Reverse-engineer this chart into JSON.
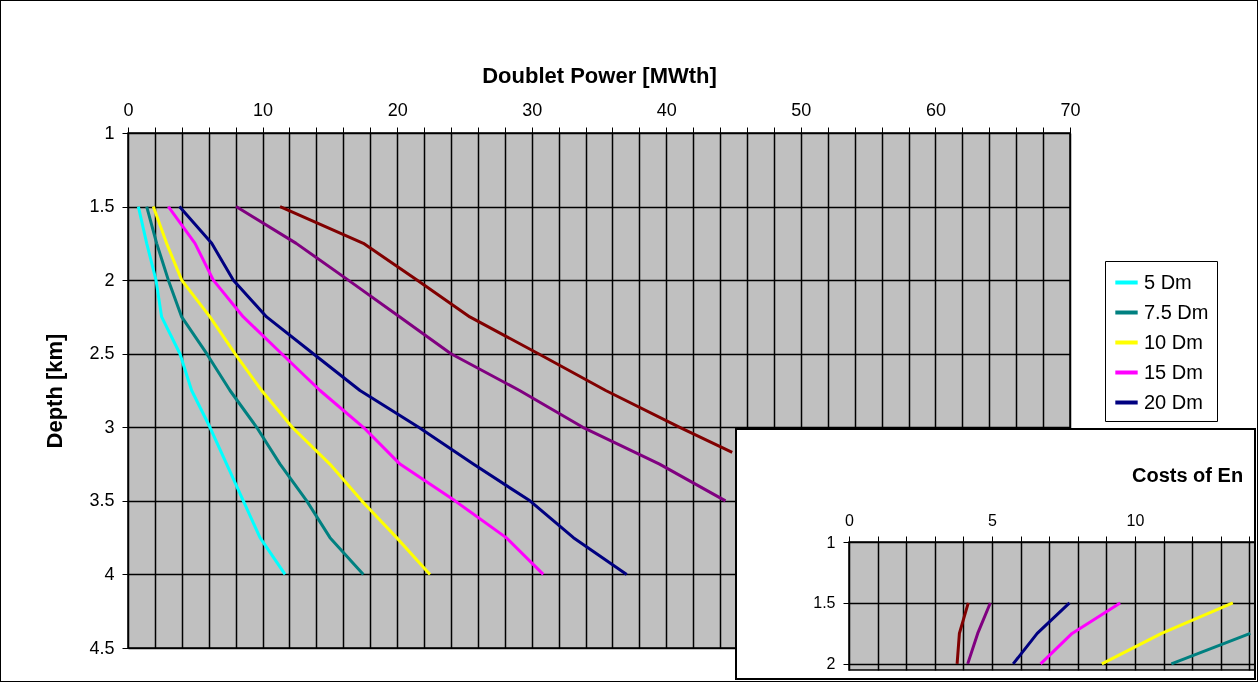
{
  "chart_data": [
    {
      "type": "line",
      "xlabel": "Doublet Power [MWth]",
      "ylabel": "Depth [km]",
      "xlim": [
        0,
        70
      ],
      "ylim": [
        4.5,
        1
      ],
      "xticks": [
        0,
        {
          "value": 2,
          "label": null
        },
        {
          "value": 4,
          "label": null
        },
        {
          "value": 6,
          "label": null
        },
        {
          "value": 8,
          "label": null
        },
        10,
        {
          "value": 12,
          "label": null
        },
        {
          "value": 14,
          "label": null
        },
        {
          "value": 16,
          "label": null
        },
        {
          "value": 18,
          "label": null
        },
        20,
        {
          "value": 22,
          "label": null
        },
        {
          "value": 24,
          "label": null
        },
        {
          "value": 26,
          "label": null
        },
        {
          "value": 28,
          "label": null
        },
        30,
        {
          "value": 32,
          "label": null
        },
        {
          "value": 34,
          "label": null
        },
        {
          "value": 36,
          "label": null
        },
        {
          "value": 38,
          "label": null
        },
        40,
        {
          "value": 42,
          "label": null
        },
        {
          "value": 44,
          "label": null
        },
        {
          "value": 46,
          "label": null
        },
        {
          "value": 48,
          "label": null
        },
        50,
        {
          "value": 52,
          "label": null
        },
        {
          "value": 54,
          "label": null
        },
        {
          "value": 56,
          "label": null
        },
        {
          "value": 58,
          "label": null
        },
        60,
        {
          "value": 62,
          "label": null
        },
        {
          "value": 64,
          "label": null
        },
        {
          "value": 66,
          "label": null
        },
        {
          "value": 68,
          "label": null
        },
        70
      ],
      "yticks": [
        1,
        1.5,
        2,
        2.5,
        3,
        3.5,
        4,
        4.5
      ],
      "grid": true,
      "legend": "right",
      "series": [
        {
          "name": "5 Dm",
          "color": "#00ffff",
          "x": [
            0.77,
            1.39,
            2.08,
            2.5,
            3.86,
            4.73,
            6.09,
            7.33,
            8.57,
            9.81,
            11.67
          ],
          "values": [
            1.5,
            1.75,
            2,
            2.25,
            2.5,
            2.75,
            3,
            3.25,
            3.5,
            3.75,
            4
          ]
        },
        {
          "name": "7.5 Dm",
          "color": "#008080",
          "x": [
            1.39,
            2.13,
            3.0,
            3.99,
            5.85,
            7.58,
            9.56,
            11.3,
            13.28,
            15.01,
            17.49
          ],
          "values": [
            1.5,
            1.75,
            2,
            2.25,
            2.5,
            2.75,
            3,
            3.25,
            3.5,
            3.75,
            4
          ]
        },
        {
          "name": "10 Dm",
          "color": "#ffff00",
          "x": [
            1.88,
            2.87,
            3.99,
            6.09,
            7.95,
            9.93,
            12.2,
            15.0,
            17.37,
            19.96,
            22.44
          ],
          "values": [
            1.5,
            1.75,
            2,
            2.25,
            2.5,
            2.75,
            3,
            3.25,
            3.5,
            3.75,
            4
          ]
        },
        {
          "name": "15 Dm",
          "color": "#ff00ff",
          "x": [
            3.0,
            4.98,
            6.34,
            8.57,
            11.42,
            14.27,
            17.49,
            20.21,
            24.3,
            28.1,
            30.86
          ],
          "values": [
            1.5,
            1.75,
            2,
            2.25,
            2.5,
            2.75,
            3,
            3.25,
            3.5,
            3.75,
            4
          ]
        },
        {
          "name": "20 Dm",
          "color": "#000080",
          "x": [
            3.82,
            6.22,
            7.83,
            10.3,
            13.77,
            17.24,
            21.6,
            25.66,
            29.87,
            33.1,
            37.06
          ],
          "values": [
            1.5,
            1.75,
            2,
            2.25,
            2.5,
            2.75,
            3,
            3.25,
            3.5,
            3.75,
            4
          ]
        },
        {
          "color": "#800080",
          "x": [
            8.03,
            12.5,
            16.37,
            20.2,
            24.0,
            29.1,
            33.8,
            39.5,
            44.4
          ],
          "values": [
            1.5,
            1.75,
            2,
            2.25,
            2.5,
            2.75,
            3,
            3.25,
            3.5
          ]
        },
        {
          "color": "#800000",
          "x": [
            11.3,
            17.49,
            21.5,
            25.4,
            30.5,
            35.5,
            41.0,
            44.9
          ],
          "values": [
            1.5,
            1.75,
            2,
            2.25,
            2.5,
            2.75,
            3,
            3.17
          ]
        }
      ]
    },
    {
      "type": "line",
      "title": "Costs of En",
      "xlim": [
        0,
        14.3
      ],
      "ylim": [
        2.05,
        1
      ],
      "xticks": [
        0,
        {
          "value": 1,
          "label": null
        },
        {
          "value": 2,
          "label": null
        },
        {
          "value": 3,
          "label": null
        },
        {
          "value": 4,
          "label": null
        },
        5,
        {
          "value": 6,
          "label": null
        },
        {
          "value": 7,
          "label": null
        },
        {
          "value": 8,
          "label": null
        },
        {
          "value": 9,
          "label": null
        },
        10,
        {
          "value": 11,
          "label": null
        },
        {
          "value": 12,
          "label": null
        },
        {
          "value": 13,
          "label": null
        },
        {
          "value": 14,
          "label": null
        }
      ],
      "yticks": [
        1,
        1.5,
        2
      ],
      "grid": true,
      "series": [
        {
          "color": "#800000",
          "x": [
            4.17,
            3.86,
            3.78
          ],
          "values": [
            1.5,
            1.75,
            2
          ]
        },
        {
          "color": "#800080",
          "x": [
            4.94,
            4.5,
            4.15
          ],
          "values": [
            1.5,
            1.75,
            2
          ]
        },
        {
          "color": "#000080",
          "x": [
            7.71,
            6.58,
            5.74
          ],
          "values": [
            1.5,
            1.75,
            2
          ]
        },
        {
          "color": "#ff00ff",
          "x": [
            9.48,
            7.8,
            6.7
          ],
          "values": [
            1.5,
            1.75,
            2
          ]
        },
        {
          "color": "#ffff00",
          "x": [
            13.42,
            10.93,
            8.84
          ],
          "values": [
            1.5,
            1.75,
            2
          ]
        },
        {
          "color": "#008080",
          "x": [
            14.03,
            11.27
          ],
          "values": [
            1.75,
            2
          ]
        }
      ]
    }
  ]
}
